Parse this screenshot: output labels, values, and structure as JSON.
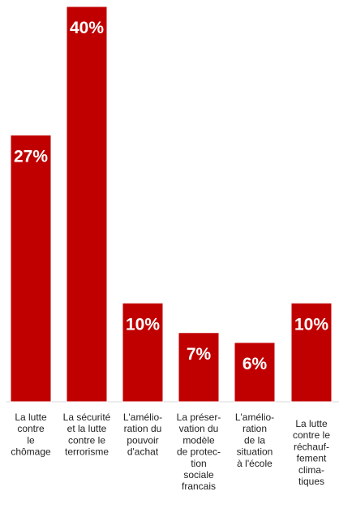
{
  "chart_data": {
    "type": "bar",
    "categories": [
      [
        "La lutte",
        "contre",
        "le",
        "chômage"
      ],
      [
        "La sécurité",
        "et la lutte",
        "contre le",
        "terrorisme"
      ],
      [
        "L'amélio-",
        "ration du",
        "pouvoir",
        "d'achat"
      ],
      [
        "La préser-",
        "vation du",
        "modèle",
        "de protec-",
        "tion",
        "sociale",
        "francais"
      ],
      [
        "L'amélio-",
        "ration",
        "de la",
        "situation",
        "à l'école"
      ],
      [
        "La lutte",
        "contre le",
        "réchauf-",
        "fement",
        "clima-",
        "tiques"
      ]
    ],
    "values": [
      27,
      40,
      10,
      7,
      6,
      10
    ],
    "value_labels": [
      "27%",
      "40%",
      "10%",
      "7%",
      "6%",
      "10%"
    ],
    "ylim": [
      0,
      40
    ],
    "bar_color": "#c00000",
    "value_label_color": "#ffffff",
    "grid": false,
    "legend": "none"
  }
}
